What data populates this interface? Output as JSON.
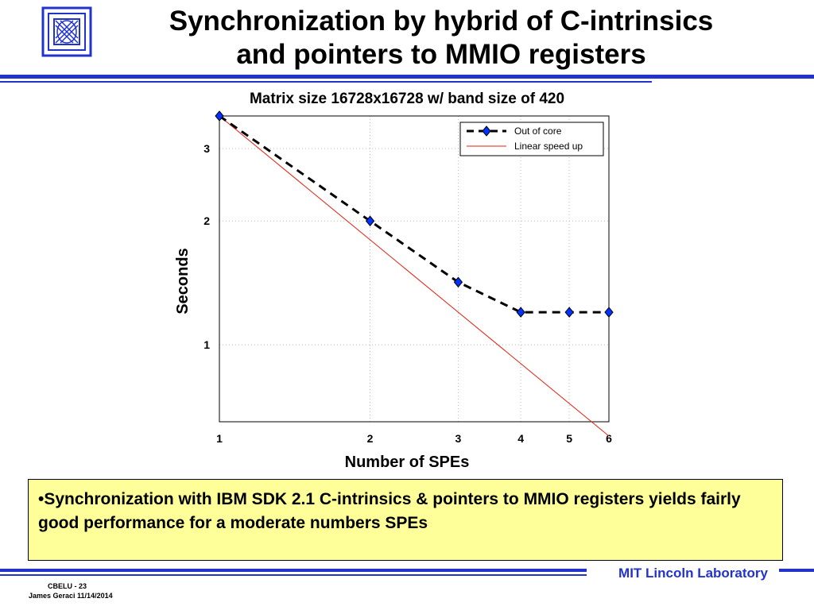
{
  "slide": {
    "title_line1": "Synchronization by hybrid of C-intrinsics",
    "title_line2": "and pointers to MMIO registers",
    "bullet": "•Synchronization with IBM SDK 2.1 C-intrinsics & pointers to MMIO registers yields fairly good performance for a moderate numbers SPEs",
    "lab": "MIT Lincoln Laboratory",
    "footer_id": "CBELU - 23",
    "footer_author": "James Geraci 11/14/2014",
    "accent_color": "#2233cc",
    "box_color": "#ffff99"
  },
  "chart_data": {
    "type": "line",
    "title": "Matrix size 16728x16728 w/ band size of 420",
    "xlabel": "Number of SPEs",
    "ylabel": "Seconds",
    "x_scale": "log",
    "y_scale": "log",
    "xlim": [
      1,
      6
    ],
    "ylim": [
      0.65,
      3.6
    ],
    "xticks": [
      1,
      2,
      3,
      4,
      5,
      6
    ],
    "yticks": [
      1,
      2,
      3
    ],
    "grid": true,
    "legend_position": "top-right",
    "series": [
      {
        "name": "Out of core",
        "x": [
          1,
          2,
          3,
          4,
          5,
          6
        ],
        "y": [
          3.6,
          2.0,
          1.42,
          1.2,
          1.2,
          1.2
        ],
        "style": "dashed",
        "color": "#000000",
        "marker": "diamond",
        "marker_color": "#0033ff"
      },
      {
        "name": "Linear speed up",
        "x": [
          1,
          6
        ],
        "y": [
          3.6,
          0.6
        ],
        "style": "solid",
        "color": "#e02010"
      }
    ]
  }
}
